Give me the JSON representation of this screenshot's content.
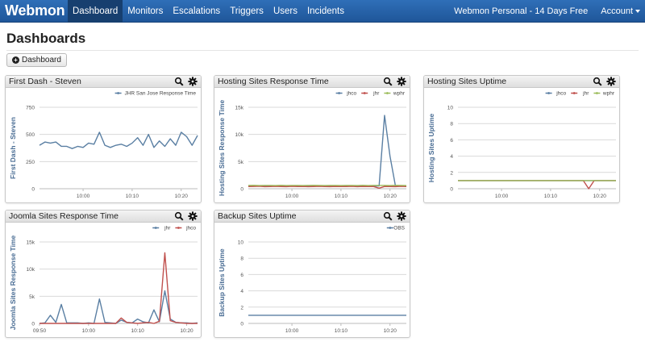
{
  "nav": {
    "brand": "Webmon",
    "items": [
      {
        "label": "Dashboard",
        "active": true
      },
      {
        "label": "Monitors"
      },
      {
        "label": "Escalations"
      },
      {
        "label": "Triggers"
      },
      {
        "label": "Users"
      },
      {
        "label": "Incidents"
      }
    ],
    "plan": "Webmon Personal - 14 Days Free",
    "account": "Account"
  },
  "page": {
    "title": "Dashboards",
    "add_button": "Dashboard"
  },
  "colors": {
    "navbar": "#2567ad",
    "series_blue": "#5a7fa3",
    "series_red": "#c0504d",
    "series_green": "#9bbb59",
    "axis_label": "#4a6d94"
  },
  "chart_data": [
    {
      "type": "line",
      "title": "First Dash - Steven",
      "ylabel": "First Dash - Steven",
      "ylim": [
        0,
        750
      ],
      "yticks": [
        0,
        250,
        500,
        750
      ],
      "ytick_labels": [
        "0",
        "250",
        "500",
        "750"
      ],
      "xlim": [
        0,
        29
      ],
      "xticks": [
        {
          "label": "10:00",
          "pos": 8
        },
        {
          "label": "10:10",
          "pos": 17
        },
        {
          "label": "10:20",
          "pos": 26
        }
      ],
      "legend": "top-right",
      "grid": true,
      "series": [
        {
          "name": "JHR San Jose Response Time",
          "color": "#5a7fa3",
          "values": [
            400,
            430,
            420,
            430,
            390,
            390,
            370,
            390,
            380,
            420,
            410,
            520,
            400,
            380,
            400,
            410,
            390,
            420,
            470,
            400,
            500,
            380,
            440,
            390,
            460,
            400,
            520,
            480,
            400,
            490
          ]
        }
      ]
    },
    {
      "type": "line",
      "title": "Hosting Sites Response Time",
      "ylabel": "Hosting Sites Response Time",
      "ylim": [
        0,
        15000
      ],
      "yticks": [
        0,
        5000,
        10000,
        15000
      ],
      "ytick_labels": [
        "0",
        "5k",
        "10k",
        "15k"
      ],
      "xlim": [
        0,
        29
      ],
      "xticks": [
        {
          "label": "10:00",
          "pos": 8
        },
        {
          "label": "10:10",
          "pos": 17
        },
        {
          "label": "10:20",
          "pos": 26
        }
      ],
      "legend": "top-right",
      "grid": true,
      "series": [
        {
          "name": "jhco",
          "color": "#5a7fa3",
          "values": [
            500,
            520,
            480,
            510,
            500,
            490,
            520,
            480,
            510,
            500,
            480,
            500,
            520,
            500,
            480,
            510,
            500,
            490,
            510,
            500,
            490,
            520,
            480,
            500,
            510,
            13500,
            6000,
            500,
            490,
            510
          ]
        },
        {
          "name": "jhr",
          "color": "#c0504d",
          "values": [
            400,
            420,
            450,
            380,
            400,
            430,
            410,
            390,
            440,
            400,
            420,
            380,
            410,
            430,
            400,
            390,
            420,
            410,
            400,
            430,
            380,
            420,
            410,
            400,
            100,
            420,
            410,
            390,
            430,
            400
          ]
        },
        {
          "name": "wphr",
          "color": "#9bbb59",
          "values": [
            600,
            620,
            580,
            610,
            600,
            590,
            620,
            580,
            610,
            600,
            590,
            600,
            620,
            600,
            580,
            610,
            600,
            590,
            610,
            600,
            590,
            620,
            580,
            600,
            610,
            600,
            590,
            620,
            600,
            590
          ]
        }
      ]
    },
    {
      "type": "line",
      "title": "Hosting Sites Uptime",
      "ylabel": "Hosting Sites Uptime",
      "ylim": [
        0,
        10
      ],
      "yticks": [
        0,
        2,
        4,
        6,
        8,
        10
      ],
      "ytick_labels": [
        "0",
        "2",
        "4",
        "6",
        "8",
        "10"
      ],
      "xlim": [
        0,
        29
      ],
      "xticks": [
        {
          "label": "10:00",
          "pos": 8
        },
        {
          "label": "10:10",
          "pos": 17
        },
        {
          "label": "10:20",
          "pos": 26
        }
      ],
      "legend": "top-right",
      "grid": true,
      "series": [
        {
          "name": "jhco",
          "color": "#5a7fa3",
          "values": [
            1,
            1,
            1,
            1,
            1,
            1,
            1,
            1,
            1,
            1,
            1,
            1,
            1,
            1,
            1,
            1,
            1,
            1,
            1,
            1,
            1,
            1,
            1,
            1,
            1,
            1,
            1,
            1,
            1,
            1
          ]
        },
        {
          "name": "jhr",
          "color": "#c0504d",
          "values": [
            1,
            1,
            1,
            1,
            1,
            1,
            1,
            1,
            1,
            1,
            1,
            1,
            1,
            1,
            1,
            1,
            1,
            1,
            1,
            1,
            1,
            1,
            1,
            1,
            0,
            1,
            1,
            1,
            1,
            1
          ]
        },
        {
          "name": "wphr",
          "color": "#9bbb59",
          "values": [
            1,
            1,
            1,
            1,
            1,
            1,
            1,
            1,
            1,
            1,
            1,
            1,
            1,
            1,
            1,
            1,
            1,
            1,
            1,
            1,
            1,
            1,
            1,
            1,
            1,
            1,
            1,
            1,
            1,
            1
          ]
        }
      ]
    },
    {
      "type": "line",
      "title": "Joomla Sites Response Time",
      "ylabel": "Joomla Sites Response Time",
      "ylim": [
        0,
        15000
      ],
      "yticks": [
        0,
        5000,
        10000,
        15000
      ],
      "ytick_labels": [
        "0",
        "5k",
        "10k",
        "15k"
      ],
      "xlim": [
        0,
        29
      ],
      "xticks": [
        {
          "label": "09:50",
          "pos": 0
        },
        {
          "label": "10:00",
          "pos": 9
        },
        {
          "label": "10:10",
          "pos": 18
        },
        {
          "label": "10:20",
          "pos": 27
        }
      ],
      "legend": "top-right",
      "grid": true,
      "series": [
        {
          "name": "jhr",
          "color": "#5a7fa3",
          "values": [
            0,
            100,
            1500,
            200,
            3500,
            100,
            100,
            100,
            0,
            100,
            0,
            4500,
            200,
            100,
            0,
            600,
            200,
            100,
            800,
            300,
            100,
            2500,
            300,
            6000,
            800,
            200,
            100,
            100,
            0,
            100
          ]
        },
        {
          "name": "jhco",
          "color": "#c0504d",
          "values": [
            0,
            0,
            0,
            0,
            0,
            0,
            0,
            0,
            0,
            0,
            0,
            0,
            0,
            0,
            0,
            1000,
            200,
            100,
            0,
            100,
            200,
            0,
            400,
            13000,
            500,
            200,
            100,
            0,
            0,
            0
          ]
        }
      ]
    },
    {
      "type": "line",
      "title": "Backup Sites Uptime",
      "ylabel": "Backup Sites Uptime",
      "ylim": [
        0,
        10
      ],
      "yticks": [
        0,
        2,
        4,
        6,
        8,
        10
      ],
      "ytick_labels": [
        "0",
        "2",
        "4",
        "6",
        "8",
        "10"
      ],
      "xlim": [
        0,
        29
      ],
      "xticks": [
        {
          "label": "10:00",
          "pos": 8
        },
        {
          "label": "10:10",
          "pos": 17
        },
        {
          "label": "10:20",
          "pos": 26
        }
      ],
      "legend": "top-right",
      "grid": true,
      "series": [
        {
          "name": "OBS",
          "color": "#5a7fa3",
          "values": [
            1,
            1,
            1,
            1,
            1,
            1,
            1,
            1,
            1,
            1,
            1,
            1,
            1,
            1,
            1,
            1,
            1,
            1,
            1,
            1,
            1,
            1,
            1,
            1,
            1,
            1,
            1,
            1,
            1,
            1
          ]
        }
      ]
    }
  ]
}
